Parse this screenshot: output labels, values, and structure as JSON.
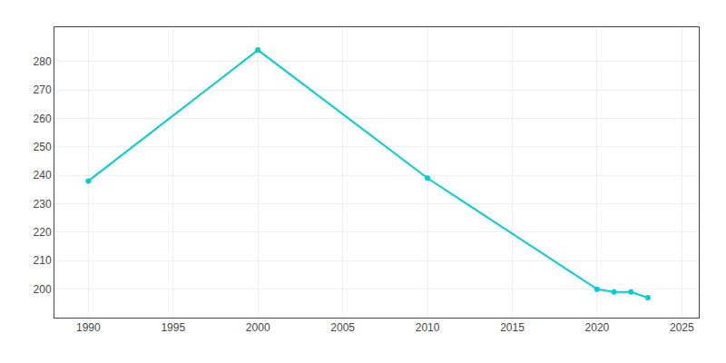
{
  "chart_data": {
    "type": "line",
    "x": [
      1990,
      2000,
      2010,
      2020,
      2021,
      2022,
      2023
    ],
    "values": [
      238,
      284,
      239,
      200,
      199,
      199,
      197
    ],
    "color": "#00CED1",
    "marker": "circle",
    "xlim": [
      1988,
      2026
    ],
    "ylim": [
      190,
      292
    ],
    "xticks": [
      1990,
      1995,
      2000,
      2005,
      2010,
      2015,
      2020,
      2025
    ],
    "yticks": [
      200,
      210,
      220,
      230,
      240,
      250,
      260,
      270,
      280
    ],
    "grid": true
  }
}
